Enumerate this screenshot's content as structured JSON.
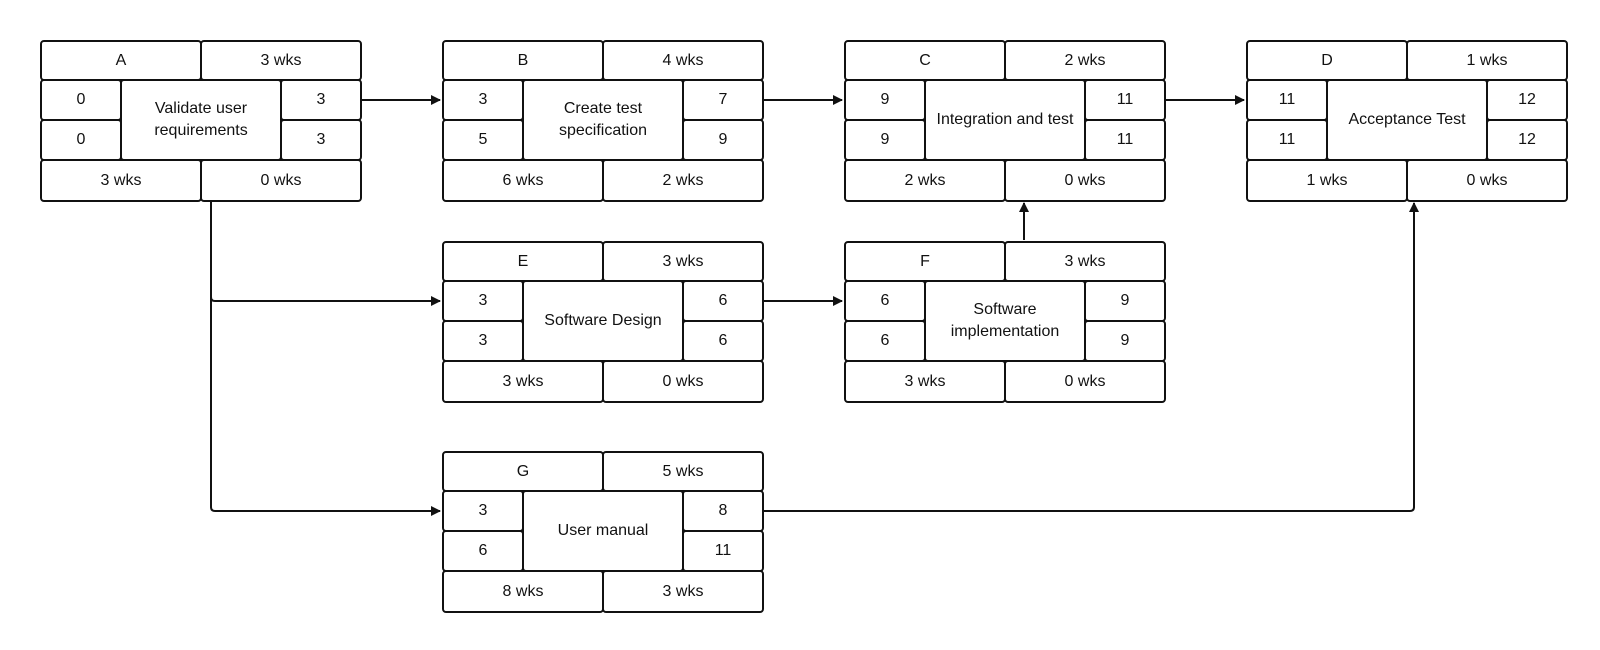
{
  "diagram": {
    "nodes": {
      "A": {
        "id": "A",
        "duration": "3 wks",
        "name": "Validate user requirements",
        "es": "0",
        "ls": "0",
        "ef": "3",
        "lf": "3",
        "total": "3 wks",
        "slack": "0 wks"
      },
      "B": {
        "id": "B",
        "duration": "4 wks",
        "name": "Create test specification",
        "es": "3",
        "ls": "5",
        "ef": "7",
        "lf": "9",
        "total": "6 wks",
        "slack": "2 wks"
      },
      "C": {
        "id": "C",
        "duration": "2 wks",
        "name": "Integration and test",
        "es": "9",
        "ls": "9",
        "ef": "11",
        "lf": "11",
        "total": "2 wks",
        "slack": "0 wks"
      },
      "D": {
        "id": "D",
        "duration": "1 wks",
        "name": "Acceptance Test",
        "es": "11",
        "ls": "11",
        "ef": "12",
        "lf": "12",
        "total": "1 wks",
        "slack": "0 wks"
      },
      "E": {
        "id": "E",
        "duration": "3 wks",
        "name": "Software Design",
        "es": "3",
        "ls": "3",
        "ef": "6",
        "lf": "6",
        "total": "3 wks",
        "slack": "0 wks"
      },
      "F": {
        "id": "F",
        "duration": "3 wks",
        "name": "Software implementation",
        "es": "6",
        "ls": "6",
        "ef": "9",
        "lf": "9",
        "total": "3 wks",
        "slack": "0 wks"
      },
      "G": {
        "id": "G",
        "duration": "5 wks",
        "name": "User manual",
        "es": "3",
        "ls": "6",
        "ef": "8",
        "lf": "11",
        "total": "8 wks",
        "slack": "3 wks"
      }
    },
    "edges": [
      {
        "from": "A",
        "to": "B"
      },
      {
        "from": "B",
        "to": "C"
      },
      {
        "from": "C",
        "to": "D"
      },
      {
        "from": "A",
        "to": "E"
      },
      {
        "from": "A",
        "to": "G"
      },
      {
        "from": "E",
        "to": "F"
      },
      {
        "from": "F",
        "to": "C"
      },
      {
        "from": "G",
        "to": "D"
      }
    ],
    "colors": {
      "stroke": "#111111",
      "fill": "#ffffff"
    }
  }
}
